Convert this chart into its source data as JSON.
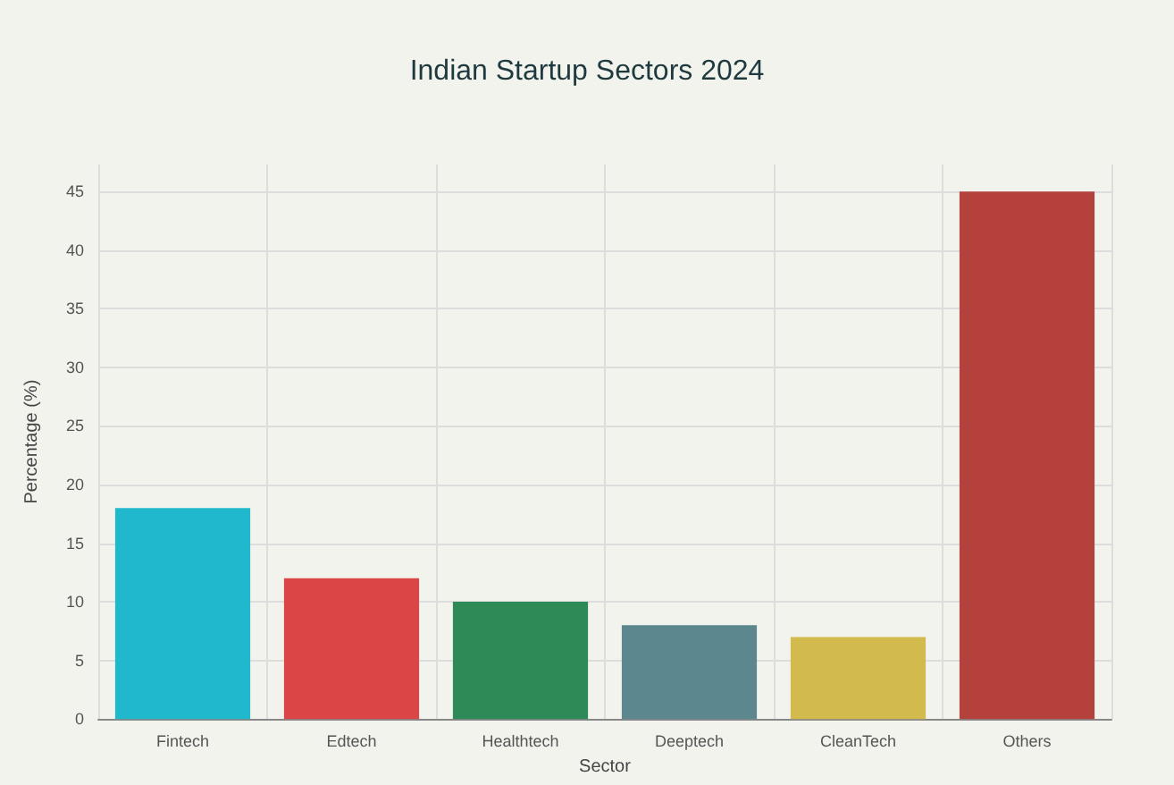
{
  "chart_data": {
    "type": "bar",
    "title": "Indian Startup Sectors 2024",
    "xlabel": "Sector",
    "ylabel": "Percentage (%)",
    "categories": [
      "Fintech",
      "Edtech",
      "Healthtech",
      "Deeptech",
      "CleanTech",
      "Others"
    ],
    "values": [
      18,
      12,
      10,
      8,
      7,
      45
    ],
    "colors": [
      "#1fb8cd",
      "#db4545",
      "#2e8b57",
      "#5d878f",
      "#d2ba4c",
      "#b4413c"
    ],
    "ylim": [
      0,
      47.3
    ],
    "yticks": [
      0,
      5,
      10,
      15,
      20,
      25,
      30,
      35,
      40,
      45
    ],
    "grid": true
  }
}
